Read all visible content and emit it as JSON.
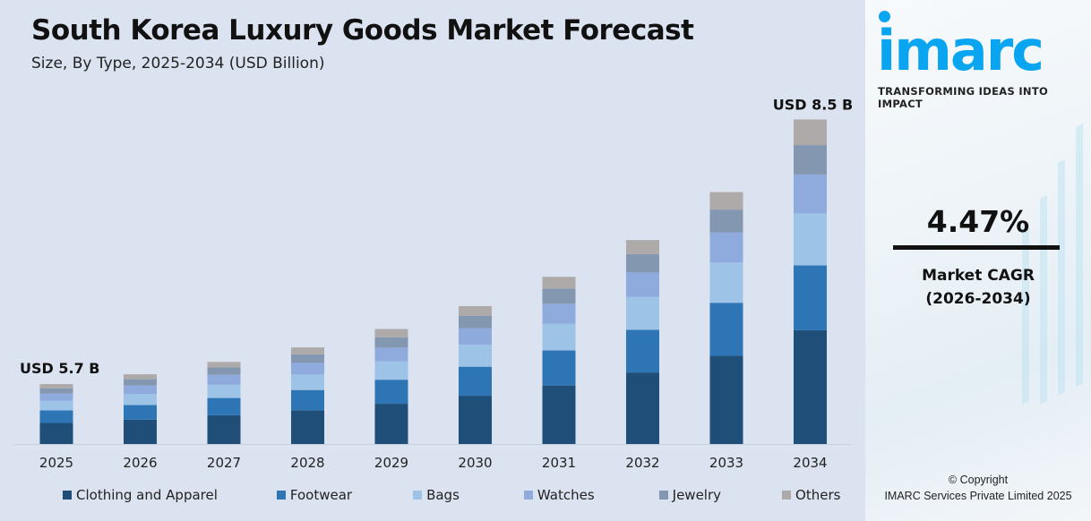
{
  "title": "South Korea Luxury Goods Market Forecast",
  "subtitle": "Size, By Type, 2025-2034 (USD Billion)",
  "chart_data": {
    "type": "bar",
    "stacked": true,
    "categories": [
      "2025",
      "2026",
      "2027",
      "2028",
      "2029",
      "2030",
      "2031",
      "2032",
      "2033",
      "2034"
    ],
    "series": [
      {
        "name": "Clothing and Apparel",
        "color": "#1f4e79",
        "values": [
          2.0,
          2.08,
          2.18,
          2.27,
          2.37,
          2.48,
          2.59,
          2.71,
          2.83,
          2.98
        ]
      },
      {
        "name": "Footwear",
        "color": "#2e75b6",
        "values": [
          1.2,
          1.25,
          1.31,
          1.36,
          1.42,
          1.49,
          1.55,
          1.62,
          1.7,
          1.7
        ]
      },
      {
        "name": "Bags",
        "color": "#9dc3e6",
        "values": [
          0.91,
          0.95,
          1.0,
          1.04,
          1.08,
          1.13,
          1.18,
          1.24,
          1.29,
          1.36
        ]
      },
      {
        "name": "Watches",
        "color": "#8faadc",
        "values": [
          0.68,
          0.71,
          0.75,
          0.78,
          0.81,
          0.85,
          0.89,
          0.93,
          0.97,
          1.02
        ]
      },
      {
        "name": "Jewelry",
        "color": "#8497b0",
        "values": [
          0.51,
          0.54,
          0.56,
          0.58,
          0.61,
          0.64,
          0.67,
          0.7,
          0.73,
          0.77
        ]
      },
      {
        "name": "Others",
        "color": "#aeaaaa",
        "values": [
          0.4,
          0.42,
          0.42,
          0.46,
          0.49,
          0.49,
          0.52,
          0.53,
          0.56,
          0.67
        ]
      }
    ],
    "annotations": [
      {
        "category": "2025",
        "text": "USD 5.7 B"
      },
      {
        "category": "2034",
        "text": "USD 8.5 B"
      }
    ],
    "xlabel": "",
    "ylabel": "",
    "grid": false,
    "legend": "bottom"
  },
  "sidebar": {
    "logo": "imarc",
    "tagline": "TRANSFORMING IDEAS INTO IMPACT",
    "cagr_value": "4.47%",
    "cagr_label": "Market CAGR",
    "cagr_period": "(2026-2034)",
    "copyright": "© Copyright",
    "company": "IMARC Services Private Limited 2025"
  }
}
